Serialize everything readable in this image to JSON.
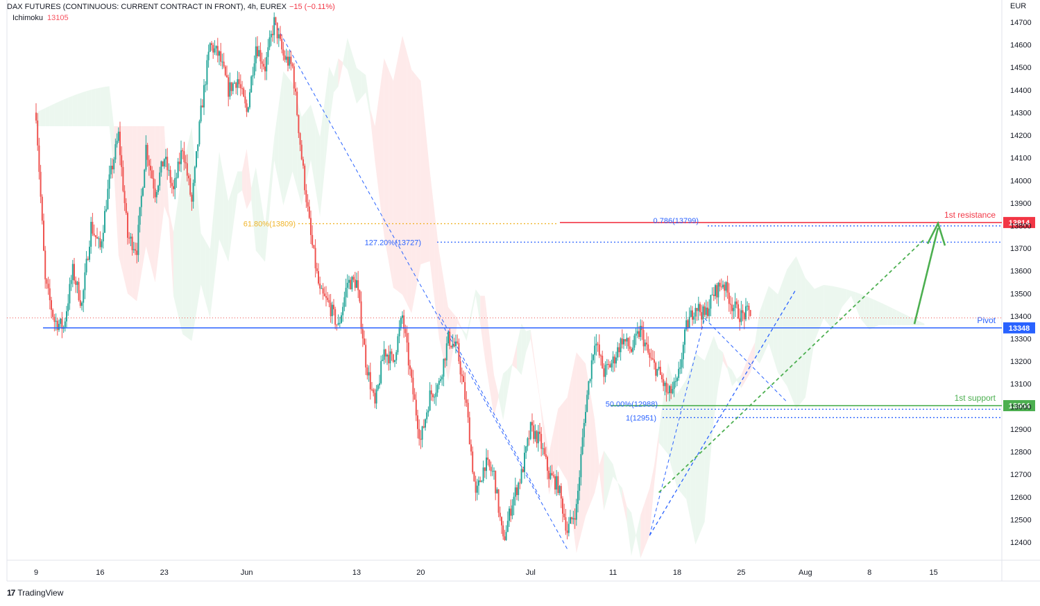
{
  "header": {
    "symbol_line": "DAX FUTURES (CONTINUOUS: CURRENT CONTRACT IN FRONT), 4h, EUREX",
    "change": "−15 (−0.11%)",
    "indicator_name": "Ichimoku",
    "indicator_value": "13105"
  },
  "footer": {
    "brand": "TradingView",
    "logo": "17"
  },
  "colors": {
    "up": "#26a69a",
    "down": "#ef5350",
    "resistance": "#f23645",
    "pivot": "#2962ff",
    "support": "#4caf50",
    "fib_orange": "#f0b429",
    "fib_blue": "#2962ff",
    "cloud_green": "#e5f4e9",
    "cloud_red": "#fde3e3"
  },
  "chart_data": {
    "type": "candlestick",
    "currency": "EUR",
    "ylim": [
      12330,
      14760
    ],
    "y_ticks": [
      12400,
      12500,
      12600,
      12700,
      12800,
      12900,
      13000,
      13100,
      13200,
      13300,
      13400,
      13500,
      13600,
      13700,
      13800,
      13900,
      14000,
      14100,
      14200,
      14300,
      14400,
      14500,
      14600,
      14700
    ],
    "x_ticks": [
      {
        "day": 0,
        "label": "9"
      },
      {
        "day": 7,
        "label": "16"
      },
      {
        "day": 14,
        "label": "23"
      },
      {
        "day": 23,
        "label": "Jun"
      },
      {
        "day": 35,
        "label": "13"
      },
      {
        "day": 42,
        "label": "20"
      },
      {
        "day": 54,
        "label": "Jul"
      },
      {
        "day": 63,
        "label": "11"
      },
      {
        "day": 70,
        "label": "18"
      },
      {
        "day": 77,
        "label": "25"
      },
      {
        "day": 84,
        "label": "Aug"
      },
      {
        "day": 91,
        "label": "8"
      },
      {
        "day": 98,
        "label": "15"
      }
    ],
    "anchors": [
      [
        0,
        14300
      ],
      [
        1,
        13550
      ],
      [
        2,
        13380
      ],
      [
        3,
        13350
      ],
      [
        4,
        13600
      ],
      [
        5,
        13450
      ],
      [
        6,
        13800
      ],
      [
        7,
        13700
      ],
      [
        8,
        14000
      ],
      [
        9,
        14200
      ],
      [
        10,
        13750
      ],
      [
        11,
        13700
      ],
      [
        12,
        14150
      ],
      [
        13,
        13950
      ],
      [
        14,
        14100
      ],
      [
        15,
        13950
      ],
      [
        16,
        14150
      ],
      [
        17,
        13900
      ],
      [
        18,
        14300
      ],
      [
        19,
        14600
      ],
      [
        20,
        14550
      ],
      [
        21,
        14400
      ],
      [
        22,
        14450
      ],
      [
        23,
        14300
      ],
      [
        24,
        14600
      ],
      [
        25,
        14500
      ],
      [
        26,
        14700
      ],
      [
        27,
        14550
      ],
      [
        28,
        14500
      ],
      [
        29,
        14100
      ],
      [
        30,
        13750
      ],
      [
        31,
        13500
      ],
      [
        32,
        13450
      ],
      [
        33,
        13350
      ],
      [
        34,
        13550
      ],
      [
        35,
        13550
      ],
      [
        36,
        13200
      ],
      [
        37,
        13000
      ],
      [
        38,
        13250
      ],
      [
        39,
        13200
      ],
      [
        40,
        13400
      ],
      [
        41,
        13100
      ],
      [
        42,
        12850
      ],
      [
        43,
        13050
      ],
      [
        44,
        13100
      ],
      [
        45,
        13300
      ],
      [
        46,
        13250
      ],
      [
        47,
        13000
      ],
      [
        48,
        12600
      ],
      [
        49,
        12750
      ],
      [
        50,
        12700
      ],
      [
        51,
        12400
      ],
      [
        52,
        12580
      ],
      [
        53,
        12700
      ],
      [
        54,
        12900
      ],
      [
        55,
        12850
      ],
      [
        56,
        12700
      ],
      [
        57,
        12650
      ],
      [
        58,
        12450
      ],
      [
        59,
        12550
      ],
      [
        60,
        13000
      ],
      [
        61,
        13300
      ],
      [
        62,
        13150
      ],
      [
        63,
        13200
      ],
      [
        64,
        13300
      ],
      [
        65,
        13250
      ],
      [
        66,
        13340
      ],
      [
        67,
        13210
      ],
      [
        68,
        13150
      ],
      [
        69,
        13050
      ],
      [
        70,
        13100
      ],
      [
        71,
        13350
      ],
      [
        72,
        13450
      ],
      [
        73,
        13400
      ],
      [
        74,
        13500
      ],
      [
        75,
        13550
      ],
      [
        76,
        13450
      ],
      [
        77,
        13400
      ],
      [
        78,
        13420
      ]
    ],
    "ichimoku_value": 13105,
    "levels": [
      {
        "name": "1st resistance",
        "value": 13814,
        "badge": "13814"
      },
      {
        "name": "Pivot",
        "value": 13348,
        "badge": "13348"
      },
      {
        "name": "1st support",
        "value": 13004,
        "badge": "13004"
      }
    ],
    "fib_labels": [
      {
        "text": "61.80%(13809)",
        "value": 13809
      },
      {
        "text": "0.786(13799)",
        "value": 13799
      },
      {
        "text": "127.20%(13727)",
        "value": 13727
      },
      {
        "text": "50.00%(12988)",
        "value": 12988
      },
      {
        "text": "1(12951)",
        "value": 12951
      }
    ]
  }
}
